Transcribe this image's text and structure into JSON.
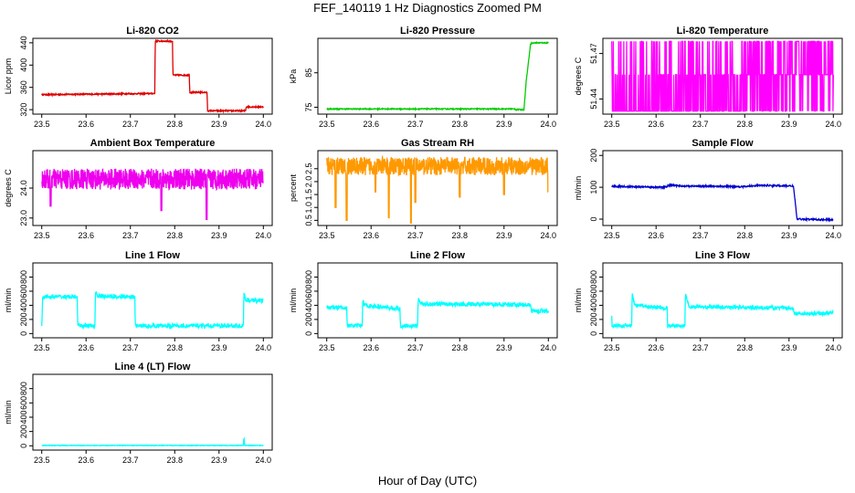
{
  "figure": {
    "title": "FEF_140119  1 Hz Diagnostics Zoomed PM",
    "xlabel": "Hour of Day (UTC)"
  },
  "chart_data": [
    {
      "type": "line",
      "title": "Li-820 CO2",
      "ylabel": "Licor ppm",
      "xlim": [
        23.48,
        24.02
      ],
      "ylim": [
        312,
        448
      ],
      "xticks": [
        23.5,
        23.6,
        23.7,
        23.8,
        23.9,
        24.0
      ],
      "xtick_labels": [
        "23.5",
        "23.6",
        "23.7",
        "23.8",
        "23.9",
        "24.0"
      ],
      "yticks": [
        320,
        360,
        400,
        440
      ],
      "ytick_labels": [
        "320",
        "360",
        "400",
        "440"
      ],
      "color": "#dd0000",
      "series": [
        {
          "style": "step",
          "noise": 1.2,
          "x": [
            23.5,
            23.755,
            23.756,
            23.795,
            23.796,
            23.833,
            23.834,
            23.873,
            23.874,
            23.96,
            23.961,
            24.0
          ],
          "y": [
            347,
            349,
            443,
            443,
            382,
            382,
            351,
            351,
            318,
            318,
            325,
            325
          ]
        }
      ]
    },
    {
      "type": "line",
      "title": "Li-820 Pressure",
      "ylabel": "kPa",
      "xlim": [
        23.48,
        24.02
      ],
      "ylim": [
        73,
        95
      ],
      "xticks": [
        23.5,
        23.6,
        23.7,
        23.8,
        23.9,
        24.0
      ],
      "xtick_labels": [
        "23.5",
        "23.6",
        "23.7",
        "23.8",
        "23.9",
        "24.0"
      ],
      "yticks": [
        75,
        85
      ],
      "ytick_labels": [
        "75",
        "85"
      ],
      "color": "#00cc00",
      "series": [
        {
          "style": "step",
          "noise": 0.15,
          "x": [
            23.5,
            23.925,
            23.926,
            23.945,
            23.95,
            23.96,
            23.97,
            24.0
          ],
          "y": [
            74.5,
            74.5,
            74.3,
            74.3,
            82.5,
            93.5,
            93.7,
            93.7
          ]
        }
      ]
    },
    {
      "type": "line",
      "title": "Li-820 Temperature",
      "ylabel": "degrees C",
      "xlim": [
        23.48,
        24.02
      ],
      "ylim": [
        51.43,
        51.48
      ],
      "xticks": [
        23.5,
        23.6,
        23.7,
        23.8,
        23.9,
        24.0
      ],
      "xtick_labels": [
        "23.5",
        "23.6",
        "23.7",
        "23.8",
        "23.9",
        "24.0"
      ],
      "yticks": [
        51.44,
        51.47
      ],
      "ytick_labels": [
        "51.44",
        "51.47"
      ],
      "color": "#ff00ff",
      "series": [
        {
          "style": "quantized",
          "x": [
            23.5,
            24.0
          ],
          "levels": [
            51.432,
            51.456,
            51.478
          ],
          "density": [
            0.25,
            0.85
          ]
        }
      ]
    },
    {
      "type": "line",
      "title": "Ambient Box Temperature",
      "ylabel": "degrees C",
      "xlim": [
        23.48,
        24.02
      ],
      "ylim": [
        22.75,
        25.25
      ],
      "xticks": [
        23.5,
        23.6,
        23.7,
        23.8,
        23.9,
        24.0
      ],
      "xtick_labels": [
        "23.5",
        "23.6",
        "23.7",
        "23.8",
        "23.9",
        "24.0"
      ],
      "yticks": [
        23.0,
        24.0
      ],
      "ytick_labels": [
        "23.0",
        "24.0"
      ],
      "color": "#ee00ee",
      "series": [
        {
          "style": "noisy",
          "noise": 0.35,
          "x": [
            23.5,
            24.0
          ],
          "y": [
            24.3,
            24.3
          ],
          "spikes": [
            [
              23.872,
              22.95
            ],
            [
              23.77,
              23.25
            ],
            [
              23.52,
              23.4
            ]
          ]
        }
      ]
    },
    {
      "type": "line",
      "title": "Gas Stream RH",
      "ylabel": "percent",
      "xlim": [
        23.48,
        24.02
      ],
      "ylim": [
        0.3,
        3.2
      ],
      "xticks": [
        23.5,
        23.6,
        23.7,
        23.8,
        23.9,
        24.0
      ],
      "xtick_labels": [
        "23.5",
        "23.6",
        "23.7",
        "23.8",
        "23.9",
        "24.0"
      ],
      "yticks": [
        0.5,
        1.0,
        1.5,
        2.0,
        2.5
      ],
      "ytick_labels": [
        "0.5",
        "1.0",
        "1.5",
        "2.0",
        "2.5"
      ],
      "color": "#ff9900",
      "series": [
        {
          "style": "noisy",
          "noise": 0.35,
          "x": [
            23.5,
            24.0
          ],
          "y": [
            2.6,
            2.6
          ],
          "spikes": [
            [
              23.545,
              0.5
            ],
            [
              23.52,
              1.0
            ],
            [
              23.64,
              0.6
            ],
            [
              23.69,
              0.4
            ],
            [
              23.7,
              1.2
            ],
            [
              23.61,
              1.6
            ],
            [
              23.8,
              1.4
            ],
            [
              23.9,
              1.5
            ],
            [
              24.0,
              1.6
            ]
          ]
        }
      ]
    },
    {
      "type": "line",
      "title": "Sample Flow",
      "ylabel": "ml/min",
      "xlim": [
        23.48,
        24.02
      ],
      "ylim": [
        -20,
        215
      ],
      "xticks": [
        23.5,
        23.6,
        23.7,
        23.8,
        23.9,
        24.0
      ],
      "xtick_labels": [
        "23.5",
        "23.6",
        "23.7",
        "23.8",
        "23.9",
        "24.0"
      ],
      "yticks": [
        0,
        100,
        200
      ],
      "ytick_labels": [
        "0",
        "100",
        "200"
      ],
      "color": "#0000cc",
      "series": [
        {
          "style": "step",
          "noise": 2.5,
          "x": [
            23.5,
            23.62,
            23.63,
            23.66,
            23.8,
            23.83,
            23.91,
            23.918,
            24.0
          ],
          "y": [
            103,
            100,
            106,
            104,
            102,
            106,
            104,
            0,
            -2
          ]
        }
      ]
    },
    {
      "type": "line",
      "title": "Line 1 Flow",
      "ylabel": "ml/min",
      "xlim": [
        23.48,
        24.02
      ],
      "ylim": [
        -60,
        1000
      ],
      "xticks": [
        23.5,
        23.6,
        23.7,
        23.8,
        23.9,
        24.0
      ],
      "xtick_labels": [
        "23.5",
        "23.6",
        "23.7",
        "23.8",
        "23.9",
        "24.0"
      ],
      "yticks": [
        0,
        200,
        400,
        600,
        800
      ],
      "ytick_labels": [
        "0",
        "200",
        "400",
        "600",
        "800"
      ],
      "color": "#00ffff",
      "series": [
        {
          "style": "step",
          "noise": 30,
          "x": [
            23.5,
            23.502,
            23.58,
            23.581,
            23.62,
            23.621,
            23.625,
            23.71,
            23.711,
            23.955,
            23.956,
            23.96,
            24.0
          ],
          "y": [
            110,
            520,
            520,
            110,
            110,
            600,
            530,
            520,
            110,
            110,
            600,
            470,
            470
          ]
        }
      ]
    },
    {
      "type": "line",
      "title": "Line 2 Flow",
      "ylabel": "ml/min",
      "xlim": [
        23.48,
        24.02
      ],
      "ylim": [
        -60,
        1000
      ],
      "xticks": [
        23.5,
        23.6,
        23.7,
        23.8,
        23.9,
        24.0
      ],
      "xtick_labels": [
        "23.5",
        "23.6",
        "23.7",
        "23.8",
        "23.9",
        "24.0"
      ],
      "yticks": [
        0,
        200,
        400,
        600,
        800
      ],
      "ytick_labels": [
        "0",
        "200",
        "400",
        "600",
        "800"
      ],
      "color": "#00ffff",
      "series": [
        {
          "style": "step",
          "noise": 30,
          "x": [
            23.5,
            23.545,
            23.546,
            23.58,
            23.581,
            23.585,
            23.665,
            23.666,
            23.705,
            23.706,
            23.712,
            23.96,
            23.961,
            24.0
          ],
          "y": [
            370,
            370,
            110,
            110,
            480,
            400,
            350,
            110,
            110,
            490,
            420,
            410,
            320,
            320
          ]
        }
      ]
    },
    {
      "type": "line",
      "title": "Line 3 Flow",
      "ylabel": "ml/min",
      "xlim": [
        23.48,
        24.02
      ],
      "ylim": [
        -60,
        1000
      ],
      "xticks": [
        23.5,
        23.6,
        23.7,
        23.8,
        23.9,
        24.0
      ],
      "xtick_labels": [
        "23.5",
        "23.6",
        "23.7",
        "23.8",
        "23.9",
        "24.0"
      ],
      "yticks": [
        0,
        200,
        400,
        600,
        800
      ],
      "ytick_labels": [
        "0",
        "200",
        "400",
        "600",
        "800"
      ],
      "color": "#00ffff",
      "series": [
        {
          "style": "step",
          "noise": 25,
          "x": [
            23.5,
            23.5,
            23.545,
            23.546,
            23.552,
            23.625,
            23.626,
            23.665,
            23.666,
            23.675,
            23.91,
            23.911,
            24.0
          ],
          "y": [
            250,
            110,
            110,
            560,
            400,
            360,
            110,
            110,
            560,
            380,
            360,
            280,
            290
          ]
        }
      ]
    },
    {
      "type": "line",
      "title": "Line 4 (LT) Flow",
      "ylabel": "ml/min",
      "xlim": [
        23.48,
        24.02
      ],
      "ylim": [
        -60,
        1000
      ],
      "xticks": [
        23.5,
        23.6,
        23.7,
        23.8,
        23.9,
        24.0
      ],
      "xtick_labels": [
        "23.5",
        "23.6",
        "23.7",
        "23.8",
        "23.9",
        "24.0"
      ],
      "yticks": [
        0,
        200,
        400,
        600,
        800
      ],
      "ytick_labels": [
        "0",
        "200",
        "400",
        "600",
        "800"
      ],
      "color": "#00ffff",
      "series": [
        {
          "style": "step",
          "noise": 4,
          "x": [
            23.5,
            23.955,
            23.956,
            23.958,
            23.96,
            24.0
          ],
          "y": [
            5,
            5,
            120,
            5,
            5,
            5
          ]
        }
      ]
    }
  ]
}
